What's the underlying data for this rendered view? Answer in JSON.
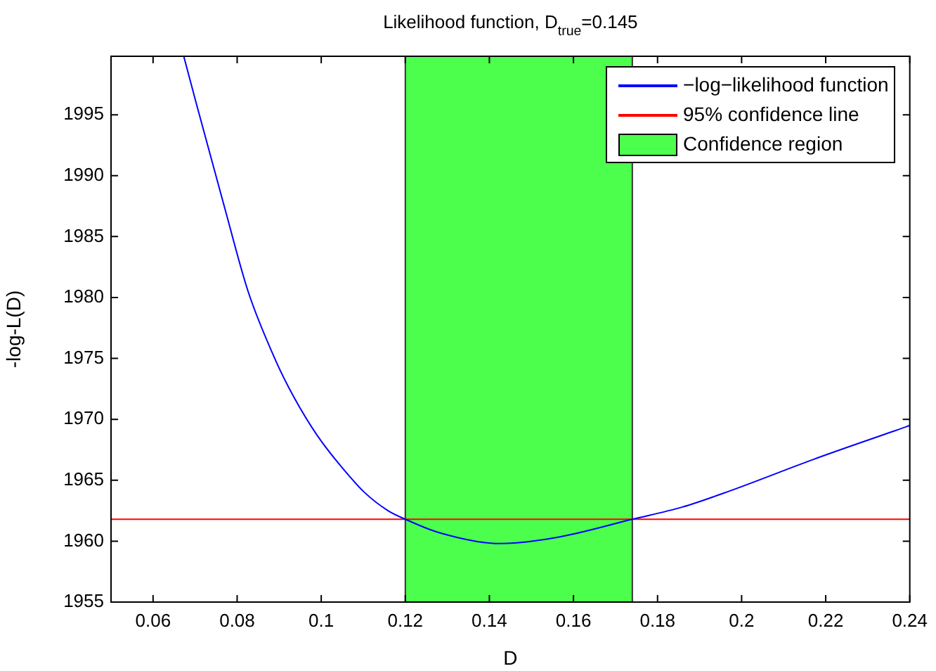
{
  "chart_data": {
    "type": "line",
    "title": "Likelihood function, D$_{true}$=0.145",
    "xlabel": "D",
    "ylabel": "-log-L(D)",
    "series": [
      {
        "name": "−log−likelihood function",
        "color": "#0000ff",
        "x": [
          0.0673,
          0.0703,
          0.077,
          0.0826,
          0.0892,
          0.0937,
          0.0992,
          0.1048,
          0.1103,
          0.1159,
          0.12,
          0.128,
          0.1426,
          0.1559,
          0.174,
          0.1859,
          0.197,
          0.217,
          0.2392,
          0.24
        ],
        "values": [
          1999.8,
          1995.9,
          1987.4,
          1980.5,
          1974.8,
          1971.7,
          1968.6,
          1966.1,
          1964.0,
          1962.5,
          1961.8,
          1960.7,
          1959.8,
          1960.3,
          1961.8,
          1962.8,
          1964.1,
          1966.7,
          1969.4,
          1969.5
        ]
      }
    ],
    "ref_lines": [
      {
        "axis": "y",
        "value": 1961.8,
        "label": "95% confidence line",
        "color": "#ff0000"
      }
    ],
    "bands": [
      {
        "axis": "x",
        "from": 0.12,
        "to": 0.174,
        "label": "Confidence region",
        "color": "#4dff4d"
      }
    ],
    "xlim": [
      0.05,
      0.24
    ],
    "xticks": [
      0.06,
      0.08,
      0.1,
      0.12,
      0.14,
      0.16,
      0.18,
      0.2,
      0.22,
      0.24
    ],
    "ylim": [
      1955,
      1999.8
    ],
    "yticks": [
      1955,
      1960,
      1965,
      1970,
      1975,
      1980,
      1985,
      1990,
      1995
    ],
    "grid": false,
    "legend": "top right",
    "marker": "none",
    "line_style": "solid"
  }
}
